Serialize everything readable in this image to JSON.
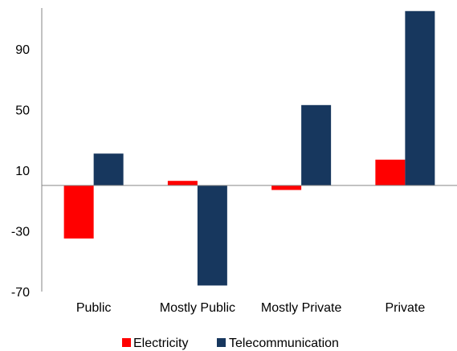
{
  "chart_data": {
    "type": "bar",
    "title": "",
    "xlabel": "",
    "ylabel": "",
    "categories": [
      "Public",
      "Mostly Public",
      "Mostly Private",
      "Private"
    ],
    "series": [
      {
        "name": "Electricity",
        "values": [
          -35,
          3,
          -3,
          17
        ],
        "color": "#ff0000"
      },
      {
        "name": "Telecommunication",
        "values": [
          21,
          -66,
          53,
          115
        ],
        "color": "#17375e"
      }
    ],
    "yticks": [
      90,
      50,
      10,
      -30,
      -70
    ],
    "ylim": [
      -70,
      117
    ],
    "grid": false,
    "legend": "bottom"
  }
}
